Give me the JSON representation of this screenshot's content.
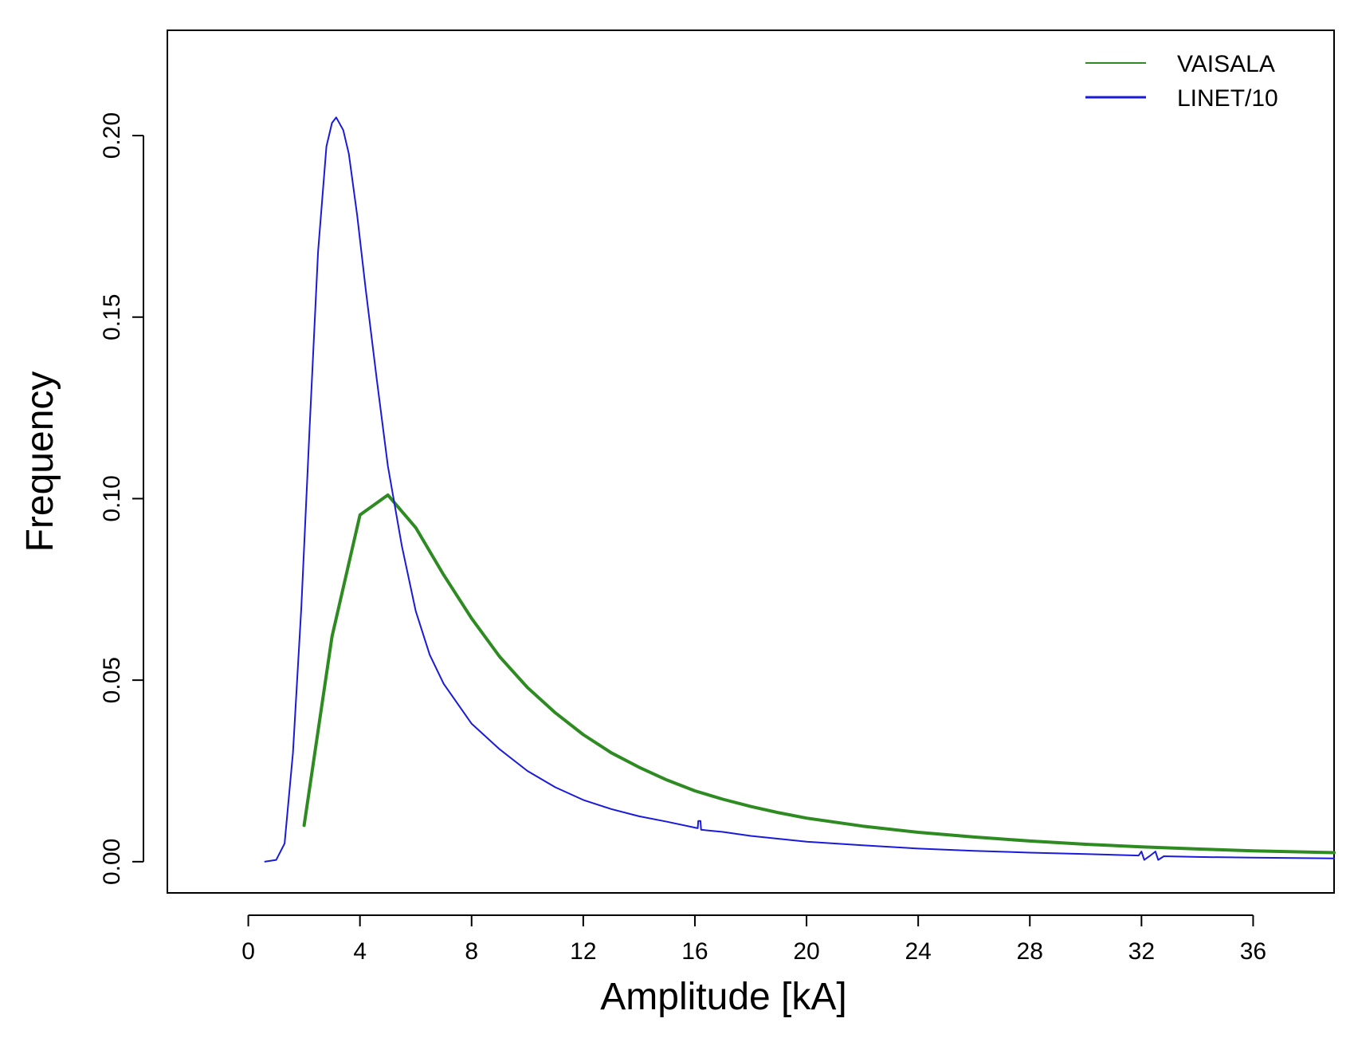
{
  "chart_data": {
    "type": "line",
    "title": "",
    "xlabel": "Amplitude [kA]",
    "ylabel": "Frequency",
    "xlim": [
      -2.9,
      38.9
    ],
    "ylim": [
      -0.0086,
      0.229
    ],
    "x_ticks": [
      0,
      4,
      8,
      12,
      16,
      20,
      24,
      28,
      32,
      36
    ],
    "x_tick_labels": [
      "0",
      "4",
      "8",
      "12",
      "16",
      "20",
      "24",
      "28",
      "32",
      "36"
    ],
    "y_ticks": [
      0.0,
      0.05,
      0.1,
      0.15,
      0.2
    ],
    "y_tick_labels": [
      "0.00",
      "0.05",
      "0.10",
      "0.15",
      "0.20"
    ],
    "grid": false,
    "legend_position": "top-right",
    "series": [
      {
        "name": "VAISALA",
        "color": "#2e8b22",
        "line_style": "thick",
        "points": [
          [
            2.0,
            0.01
          ],
          [
            3.0,
            0.062
          ],
          [
            4.0,
            0.0955
          ],
          [
            5.0,
            0.101
          ],
          [
            6.0,
            0.092
          ],
          [
            7.0,
            0.079
          ],
          [
            8.0,
            0.067
          ],
          [
            9.0,
            0.0565
          ],
          [
            10.0,
            0.048
          ],
          [
            11.0,
            0.041
          ],
          [
            12.0,
            0.035
          ],
          [
            13.0,
            0.03
          ],
          [
            14.0,
            0.026
          ],
          [
            15.0,
            0.0225
          ],
          [
            16.0,
            0.0195
          ],
          [
            17.0,
            0.0172
          ],
          [
            18.0,
            0.0152
          ],
          [
            19.0,
            0.0135
          ],
          [
            20.0,
            0.012
          ],
          [
            22.0,
            0.0098
          ],
          [
            24.0,
            0.0081
          ],
          [
            26.0,
            0.0068
          ],
          [
            28.0,
            0.0057
          ],
          [
            30.0,
            0.0048
          ],
          [
            32.0,
            0.0041
          ],
          [
            34.0,
            0.0035
          ],
          [
            36.0,
            0.003
          ],
          [
            38.9,
            0.0025
          ]
        ]
      },
      {
        "name": "LINET/10",
        "color": "#1a1adb",
        "line_style": "thin",
        "points": [
          [
            0.6,
            0.0
          ],
          [
            1.0,
            0.0005
          ],
          [
            1.3,
            0.005
          ],
          [
            1.6,
            0.03
          ],
          [
            1.9,
            0.07
          ],
          [
            2.2,
            0.12
          ],
          [
            2.5,
            0.168
          ],
          [
            2.8,
            0.197
          ],
          [
            3.0,
            0.2035
          ],
          [
            3.15,
            0.205
          ],
          [
            3.4,
            0.2015
          ],
          [
            3.6,
            0.195
          ],
          [
            3.9,
            0.178
          ],
          [
            4.2,
            0.158
          ],
          [
            4.6,
            0.133
          ],
          [
            5.0,
            0.109
          ],
          [
            5.5,
            0.087
          ],
          [
            6.0,
            0.069
          ],
          [
            6.5,
            0.057
          ],
          [
            7.0,
            0.049
          ],
          [
            8.0,
            0.038
          ],
          [
            9.0,
            0.031
          ],
          [
            10.0,
            0.025
          ],
          [
            11.0,
            0.0205
          ],
          [
            12.0,
            0.017
          ],
          [
            13.0,
            0.0145
          ],
          [
            14.0,
            0.0125
          ],
          [
            15.0,
            0.011
          ],
          [
            16.1,
            0.0092
          ],
          [
            16.12,
            0.0112
          ],
          [
            16.2,
            0.0112
          ],
          [
            16.22,
            0.0088
          ],
          [
            17.0,
            0.0082
          ],
          [
            18.0,
            0.0071
          ],
          [
            20.0,
            0.0055
          ],
          [
            22.0,
            0.0045
          ],
          [
            24.0,
            0.0036
          ],
          [
            26.0,
            0.003
          ],
          [
            28.0,
            0.0025
          ],
          [
            30.0,
            0.0021
          ],
          [
            31.9,
            0.0017
          ],
          [
            32.0,
            0.0028
          ],
          [
            32.1,
            0.0005
          ],
          [
            32.3,
            0.0016
          ],
          [
            32.5,
            0.0028
          ],
          [
            32.6,
            0.0005
          ],
          [
            32.8,
            0.0015
          ],
          [
            34.0,
            0.0013
          ],
          [
            36.0,
            0.0011
          ],
          [
            38.9,
            0.0009
          ]
        ]
      }
    ]
  }
}
